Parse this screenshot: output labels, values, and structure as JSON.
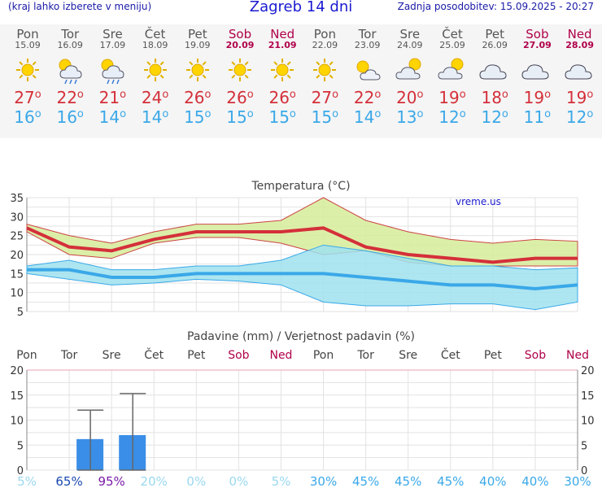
{
  "header": {
    "subtitle_left": "(kraj lahko izberete v meniju)",
    "title": "Zagreb 14 dni",
    "updated": "Zadnja posodobitev: 15.09.2025 - 20:27"
  },
  "days": [
    {
      "name": "Pon",
      "date": "15.09",
      "icon": "sun-icon",
      "max": "27",
      "min": "16",
      "weekend": false
    },
    {
      "name": "Tor",
      "date": "16.09",
      "icon": "sun-rain-icon",
      "max": "22",
      "min": "16",
      "weekend": false
    },
    {
      "name": "Sre",
      "date": "17.09",
      "icon": "sun-rain-icon",
      "max": "21",
      "min": "14",
      "weekend": false
    },
    {
      "name": "Čet",
      "date": "18.09",
      "icon": "sun-icon",
      "max": "24",
      "min": "14",
      "weekend": false
    },
    {
      "name": "Pet",
      "date": "19.09",
      "icon": "sun-icon",
      "max": "26",
      "min": "15",
      "weekend": false
    },
    {
      "name": "Sob",
      "date": "20.09",
      "icon": "sun-icon",
      "max": "26",
      "min": "15",
      "weekend": true
    },
    {
      "name": "Ned",
      "date": "21.09",
      "icon": "sun-icon",
      "max": "26",
      "min": "15",
      "weekend": true
    },
    {
      "name": "Pon",
      "date": "22.09",
      "icon": "sun-icon",
      "max": "27",
      "min": "15",
      "weekend": false
    },
    {
      "name": "Tor",
      "date": "23.09",
      "icon": "sun-cloud-icon",
      "max": "22",
      "min": "14",
      "weekend": false
    },
    {
      "name": "Sre",
      "date": "24.09",
      "icon": "cloud-sun-icon",
      "max": "20",
      "min": "13",
      "weekend": false
    },
    {
      "name": "Čet",
      "date": "25.09",
      "icon": "cloud-sun-icon",
      "max": "19",
      "min": "12",
      "weekend": false
    },
    {
      "name": "Pet",
      "date": "26.09",
      "icon": "cloud-icon",
      "max": "18",
      "min": "12",
      "weekend": false
    },
    {
      "name": "Sob",
      "date": "27.09",
      "icon": "cloud-icon",
      "max": "19",
      "min": "11",
      "weekend": true
    },
    {
      "name": "Ned",
      "date": "28.09",
      "icon": "cloud-icon",
      "max": "19",
      "min": "12",
      "weekend": true
    }
  ],
  "degree_symbol": "o",
  "colors": {
    "max_line": "#d4303a",
    "min_line": "#3aa8e8",
    "max_band": "#d6ec9a",
    "min_band": "#9fe2ee",
    "overlap_band": "#8cd68a",
    "precip_bar": "#3a8ee8",
    "weekend": "#b0004a"
  },
  "chart_data": [
    {
      "type": "line",
      "title": "Temperatura (°C)",
      "watermark": "vreme.us",
      "ylim": [
        5,
        35
      ],
      "yticks": [
        "5",
        "10",
        "15",
        "20",
        "25",
        "30",
        "35"
      ],
      "x": [
        "15.09",
        "16.09",
        "17.09",
        "18.09",
        "19.09",
        "20.09",
        "21.09",
        "22.09",
        "23.09",
        "24.09",
        "25.09",
        "26.09",
        "27.09",
        "28.09"
      ],
      "series": [
        {
          "role": "max",
          "values": [
            27,
            22,
            21,
            24,
            26,
            26,
            26,
            27,
            22,
            20,
            19,
            18,
            19,
            19
          ]
        },
        {
          "role": "max_upper",
          "values": [
            28,
            25,
            23,
            26,
            28,
            28,
            29,
            35,
            29,
            26,
            24,
            23,
            24,
            23.5
          ]
        },
        {
          "role": "max_lower",
          "values": [
            26,
            20,
            19,
            23,
            24.5,
            24.5,
            23,
            20,
            21,
            18,
            17,
            17,
            17,
            17
          ]
        },
        {
          "role": "min",
          "values": [
            16,
            16,
            14,
            14,
            15,
            15,
            15,
            15,
            14,
            13,
            12,
            12,
            11,
            12
          ]
        },
        {
          "role": "min_upper",
          "values": [
            17,
            18.5,
            16,
            16,
            17,
            17,
            18.5,
            22.5,
            21,
            19,
            17,
            17,
            16,
            16.5
          ]
        },
        {
          "role": "min_lower",
          "values": [
            15,
            13.5,
            12,
            12.5,
            13.5,
            13,
            12,
            7.5,
            6.5,
            6.5,
            7,
            7,
            5.5,
            7.5
          ]
        }
      ]
    },
    {
      "type": "bar",
      "title": "Padavine (mm) / Verjetnost padavin (%)",
      "ylim": [
        0,
        20
      ],
      "yticks": [
        "0",
        "5",
        "10",
        "15",
        "20"
      ],
      "categories": [
        "Pon",
        "Tor",
        "Sre",
        "Čet",
        "Pet",
        "Sob",
        "Ned",
        "Pon",
        "Tor",
        "Sre",
        "Čet",
        "Pet",
        "Sob",
        "Ned"
      ],
      "values": [
        0,
        6.2,
        7.0,
        0,
        0,
        0,
        0,
        0,
        0,
        0,
        0,
        0,
        0,
        0
      ],
      "error_upper": [
        0,
        12,
        15.3,
        0,
        0,
        0,
        0,
        0,
        0,
        0,
        0,
        0,
        0,
        0
      ],
      "probability": [
        "5%",
        "65%",
        "95%",
        "20%",
        "0%",
        "0%",
        "5%",
        "30%",
        "45%",
        "45%",
        "45%",
        "40%",
        "40%",
        "30%"
      ]
    }
  ]
}
